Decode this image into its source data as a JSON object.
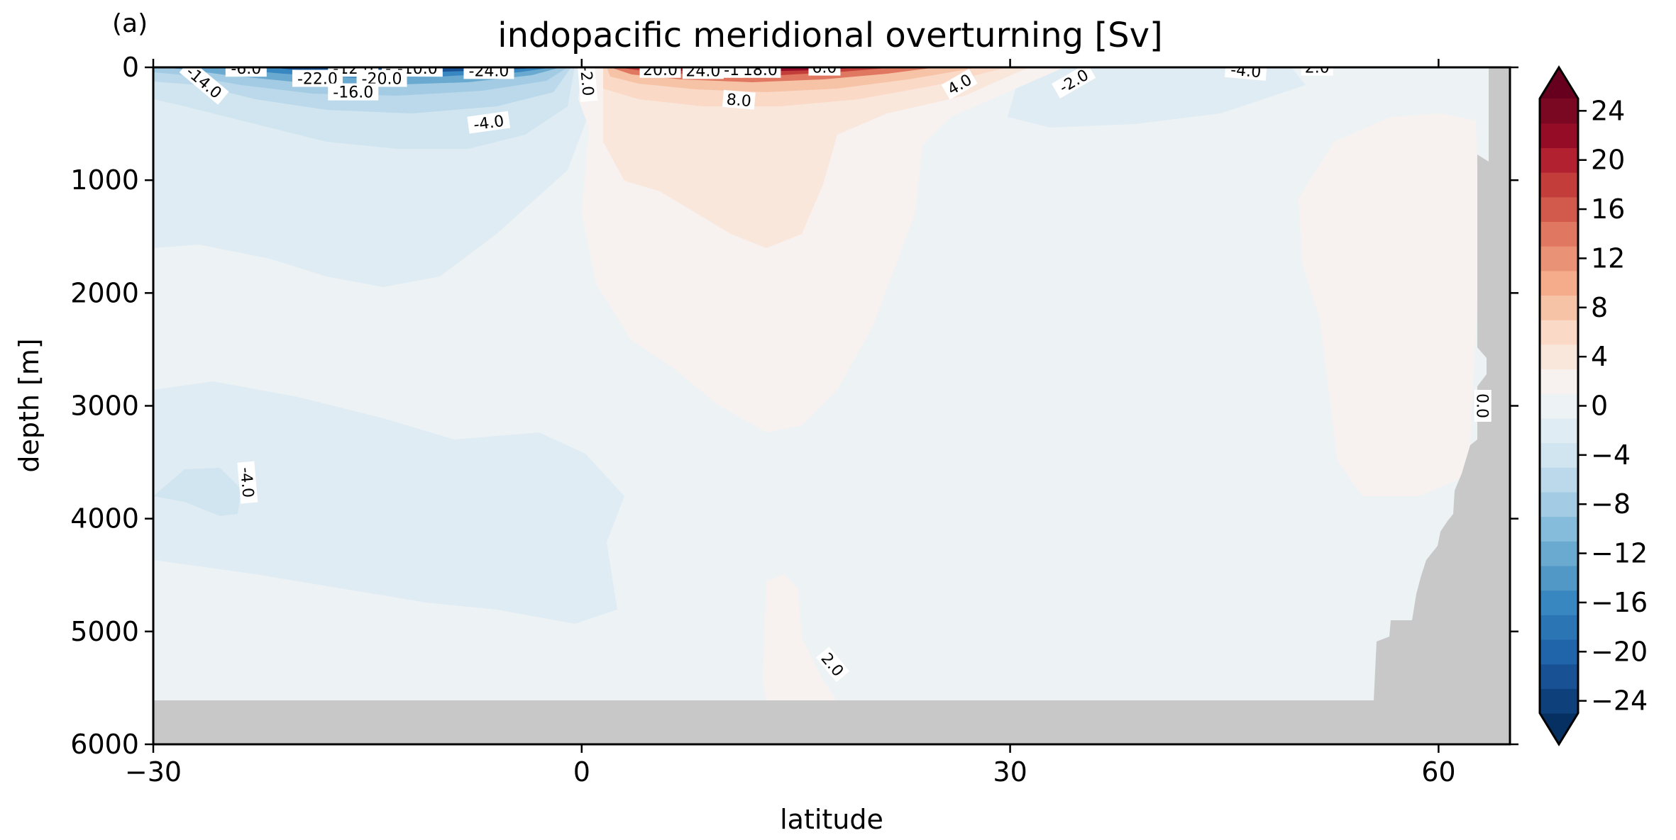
{
  "panel_label": "(a)",
  "chart_data": {
    "type": "contourf",
    "title": "indopacific meridional overturning [Sv]",
    "xlabel": "latitude",
    "ylabel": "depth [m]",
    "xlim": [
      -30,
      65
    ],
    "ylim": [
      6000,
      0
    ],
    "y_inverted": true,
    "xticks": [
      -30,
      0,
      30,
      60
    ],
    "xtick_labels": [
      "−30",
      "0",
      "30",
      "60"
    ],
    "yticks": [
      0,
      1000,
      2000,
      3000,
      4000,
      5000,
      6000
    ],
    "ytick_labels": [
      "0",
      "1000",
      "2000",
      "3000",
      "4000",
      "5000",
      "6000"
    ],
    "contour_levels_step": 2,
    "colormap": "RdBu_r",
    "colorbar": {
      "range": [
        -24,
        24
      ],
      "extend": "both",
      "ticks": [
        24,
        20,
        16,
        12,
        8,
        4,
        0,
        -4,
        -8,
        -12,
        -16,
        -20,
        -24
      ],
      "tick_labels": [
        "24",
        "20",
        "16",
        "12",
        "8",
        "4",
        "0",
        "−4",
        "−8",
        "−12",
        "−16",
        "−20",
        "−24"
      ],
      "colors": [
        "#053061",
        "#0e417b",
        "#185295",
        "#2064aa",
        "#2c75b5",
        "#3987c0",
        "#5198c6",
        "#6aaad0",
        "#86bcdb",
        "#a3cce4",
        "#bbd9ea",
        "#d1e5f0",
        "#e0ecf3",
        "#edf2f5",
        "#f7f2f0",
        "#fae7dc",
        "#fbd9c7",
        "#f7c3a7",
        "#f4ac8b",
        "#ea9275",
        "#e07760",
        "#d25a4c",
        "#c33e3b",
        "#b2212f",
        "#950c27",
        "#7a0822",
        "#67001f"
      ]
    },
    "masked_color": "#c8c8c8",
    "inline_labels": [
      {
        "text": "-6.0",
        "lat": -23.5,
        "depth": 20
      },
      {
        "text": "-12.0",
        "lat": -16.0,
        "depth": 20
      },
      {
        "text": "-1",
        "lat": -13.2,
        "depth": 20
      },
      {
        "text": "-10.0",
        "lat": -11.5,
        "depth": 20
      },
      {
        "text": "-24.0",
        "lat": -6.5,
        "depth": 40
      },
      {
        "text": "-22.0",
        "lat": -18.5,
        "depth": 110
      },
      {
        "text": "-20.0",
        "lat": -14.0,
        "depth": 110
      },
      {
        "text": "-16.0",
        "lat": -16.0,
        "depth": 230
      },
      {
        "text": "-14.0",
        "lat": -26.5,
        "depth": 140,
        "angle": 40
      },
      {
        "text": "-4.0",
        "lat": -6.5,
        "depth": 500,
        "angle": -8
      },
      {
        "text": "-4.0",
        "lat": -23.5,
        "depth": 3680,
        "angle": 85
      },
      {
        "text": "-2.0",
        "lat": 0.3,
        "depth": 120,
        "angle": 85
      },
      {
        "text": "20.0",
        "lat": 5.5,
        "depth": 30
      },
      {
        "text": "24.0",
        "lat": 8.5,
        "depth": 40
      },
      {
        "text": "-1",
        "lat": 10.5,
        "depth": 30
      },
      {
        "text": "18.0",
        "lat": 12.5,
        "depth": 30
      },
      {
        "text": "6.0",
        "lat": 17.0,
        "depth": 10
      },
      {
        "text": "8.0",
        "lat": 11.0,
        "depth": 300,
        "angle": 5
      },
      {
        "text": "4.0",
        "lat": 26.5,
        "depth": 160,
        "angle": -30
      },
      {
        "text": "-2.0",
        "lat": 34.5,
        "depth": 130,
        "angle": -30
      },
      {
        "text": "-4.0",
        "lat": 46.5,
        "depth": 40,
        "angle": 5
      },
      {
        "text": "2.0",
        "lat": 51.5,
        "depth": 10
      },
      {
        "text": "0.0",
        "lat": 63.0,
        "depth": 3000,
        "angle": 90
      },
      {
        "text": "2.0",
        "lat": 17.5,
        "depth": 5300,
        "angle": 50
      }
    ]
  }
}
